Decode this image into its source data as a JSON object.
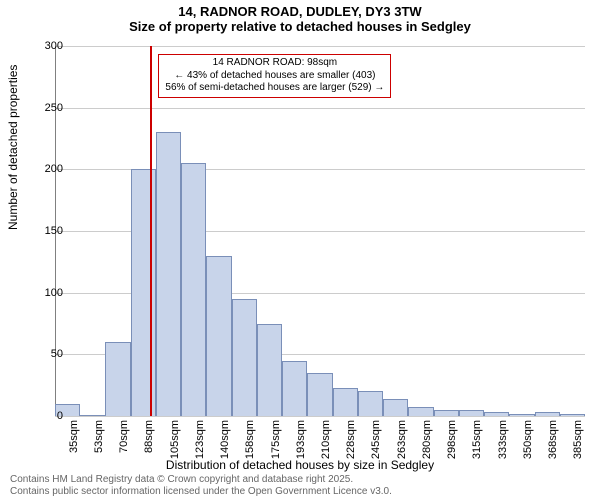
{
  "title": {
    "line1": "14, RADNOR ROAD, DUDLEY, DY3 3TW",
    "line2": "Size of property relative to detached houses in Sedgley"
  },
  "chart": {
    "type": "histogram",
    "y_label": "Number of detached properties",
    "x_label": "Distribution of detached houses by size in Sedgley",
    "ylim": [
      0,
      300
    ],
    "ytick_step": 50,
    "y_ticks": [
      0,
      50,
      100,
      150,
      200,
      250,
      300
    ],
    "x_tick_labels": [
      "35sqm",
      "53sqm",
      "70sqm",
      "88sqm",
      "105sqm",
      "123sqm",
      "140sqm",
      "158sqm",
      "175sqm",
      "193sqm",
      "210sqm",
      "228sqm",
      "245sqm",
      "263sqm",
      "280sqm",
      "298sqm",
      "315sqm",
      "333sqm",
      "350sqm",
      "368sqm",
      "385sqm"
    ],
    "bar_values": [
      10,
      0,
      60,
      200,
      230,
      205,
      130,
      95,
      75,
      45,
      35,
      23,
      20,
      14,
      7,
      5,
      5,
      3,
      2,
      3,
      2
    ],
    "bar_color": "#c8d4ea",
    "bar_border": "#7a8fb8",
    "bar_width_ratio": 1.0,
    "grid_color": "#cccccc",
    "axis_color": "#808080",
    "background_color": "#ffffff",
    "title_fontsize": 13,
    "label_fontsize": 12,
    "tick_fontsize": 11,
    "marker": {
      "position_sqm": 98,
      "x_range": [
        35,
        385
      ],
      "color": "#cc0000"
    },
    "annotation": {
      "line1": "14 RADNOR ROAD: 98sqm",
      "line2": "← 43% of detached houses are smaller (403)",
      "line3": "56% of semi-detached houses are larger (529) →",
      "border_color": "#cc0000",
      "fontsize": 10
    }
  },
  "footer": {
    "line1": "Contains HM Land Registry data © Crown copyright and database right 2025.",
    "line2": "Contains public sector information licensed under the Open Government Licence v3.0.",
    "color": "#666666",
    "fontsize": 10
  }
}
